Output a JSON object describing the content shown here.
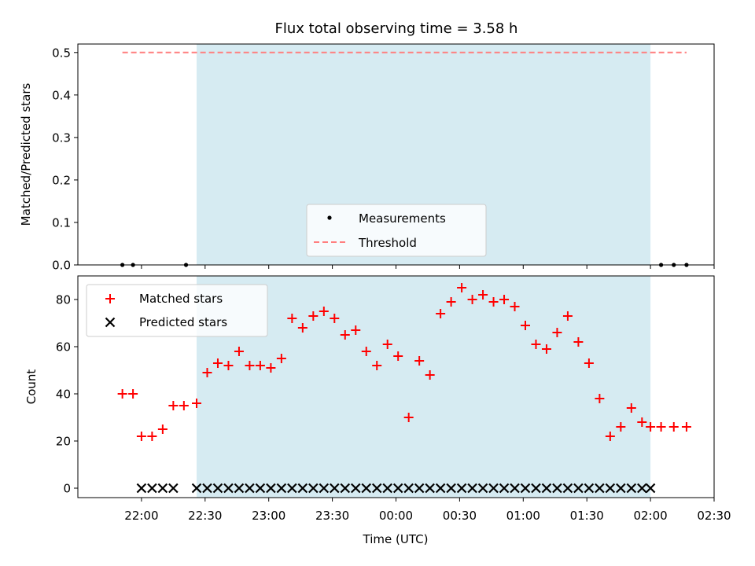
{
  "chart_data": [
    {
      "type": "scatter",
      "title": "Flux total observing time = 3.58 h",
      "xlabel": "",
      "ylabel": "Matched/Predicted stars",
      "xlim": [
        "21:30",
        "02:30"
      ],
      "ylim": [
        0.0,
        0.52
      ],
      "grid": false,
      "legend_placement": "lower center",
      "yticks": [
        "0.0",
        "0.1",
        "0.2",
        "0.3",
        "0.4",
        "0.5"
      ],
      "ytick_values": [
        0.0,
        0.1,
        0.2,
        0.3,
        0.4,
        0.5
      ],
      "shaded_interval": {
        "start": "22:26",
        "end": "02:00",
        "color": "#add8e6"
      },
      "series": [
        {
          "name": "Measurements",
          "marker": "dot",
          "color": "#000000",
          "points": [
            {
              "x": "21:51",
              "y": 0.0
            },
            {
              "x": "21:56",
              "y": 0.0
            },
            {
              "x": "22:21",
              "y": 0.0
            },
            {
              "x": "02:05",
              "y": 0.0
            },
            {
              "x": "02:11",
              "y": 0.0
            },
            {
              "x": "02:17",
              "y": 0.0
            }
          ]
        },
        {
          "name": "Threshold",
          "style": "dashed-line",
          "color": "#ff7f7f",
          "points": [
            {
              "x": "21:51",
              "y": 0.5
            },
            {
              "x": "02:17",
              "y": 0.5
            }
          ]
        }
      ]
    },
    {
      "type": "scatter",
      "title": "",
      "xlabel": "Time (UTC)",
      "ylabel": "Count",
      "xlim": [
        "21:30",
        "02:30"
      ],
      "ylim": [
        -4,
        90
      ],
      "grid": false,
      "legend_placement": "upper left",
      "xticks": [
        "22:00",
        "22:30",
        "23:00",
        "23:30",
        "00:00",
        "00:30",
        "01:00",
        "01:30",
        "02:00",
        "02:30"
      ],
      "yticks": [
        "0",
        "20",
        "40",
        "60",
        "80"
      ],
      "ytick_values": [
        0,
        20,
        40,
        60,
        80
      ],
      "shaded_interval": {
        "start": "22:26",
        "end": "02:00",
        "color": "#add8e6"
      },
      "series": [
        {
          "name": "Matched stars",
          "marker": "plus",
          "color": "#ff0000",
          "points": [
            {
              "x": "21:51",
              "y": 40
            },
            {
              "x": "21:56",
              "y": 40
            },
            {
              "x": "22:00",
              "y": 22
            },
            {
              "x": "22:05",
              "y": 22
            },
            {
              "x": "22:10",
              "y": 25
            },
            {
              "x": "22:15",
              "y": 35
            },
            {
              "x": "22:20",
              "y": 35
            },
            {
              "x": "22:26",
              "y": 36
            },
            {
              "x": "22:31",
              "y": 49
            },
            {
              "x": "22:36",
              "y": 53
            },
            {
              "x": "22:41",
              "y": 52
            },
            {
              "x": "22:46",
              "y": 58
            },
            {
              "x": "22:51",
              "y": 52
            },
            {
              "x": "22:56",
              "y": 52
            },
            {
              "x": "23:01",
              "y": 51
            },
            {
              "x": "23:06",
              "y": 55
            },
            {
              "x": "23:11",
              "y": 72
            },
            {
              "x": "23:16",
              "y": 68
            },
            {
              "x": "23:21",
              "y": 73
            },
            {
              "x": "23:26",
              "y": 75
            },
            {
              "x": "23:31",
              "y": 72
            },
            {
              "x": "23:36",
              "y": 65
            },
            {
              "x": "23:41",
              "y": 67
            },
            {
              "x": "23:46",
              "y": 58
            },
            {
              "x": "23:51",
              "y": 52
            },
            {
              "x": "23:56",
              "y": 61
            },
            {
              "x": "00:01",
              "y": 56
            },
            {
              "x": "00:06",
              "y": 30
            },
            {
              "x": "00:11",
              "y": 54
            },
            {
              "x": "00:16",
              "y": 48
            },
            {
              "x": "00:21",
              "y": 74
            },
            {
              "x": "00:26",
              "y": 79
            },
            {
              "x": "00:31",
              "y": 85
            },
            {
              "x": "00:36",
              "y": 80
            },
            {
              "x": "00:41",
              "y": 82
            },
            {
              "x": "00:46",
              "y": 79
            },
            {
              "x": "00:51",
              "y": 80
            },
            {
              "x": "00:56",
              "y": 77
            },
            {
              "x": "01:01",
              "y": 69
            },
            {
              "x": "01:06",
              "y": 61
            },
            {
              "x": "01:11",
              "y": 59
            },
            {
              "x": "01:16",
              "y": 66
            },
            {
              "x": "01:21",
              "y": 73
            },
            {
              "x": "01:26",
              "y": 62
            },
            {
              "x": "01:31",
              "y": 53
            },
            {
              "x": "01:36",
              "y": 38
            },
            {
              "x": "01:41",
              "y": 22
            },
            {
              "x": "01:46",
              "y": 26
            },
            {
              "x": "01:51",
              "y": 34
            },
            {
              "x": "01:56",
              "y": 28
            },
            {
              "x": "02:00",
              "y": 26
            },
            {
              "x": "02:05",
              "y": 26
            },
            {
              "x": "02:11",
              "y": 26
            },
            {
              "x": "02:17",
              "y": 26
            }
          ]
        },
        {
          "name": "Predicted stars",
          "marker": "x",
          "color": "#000000",
          "points": [
            {
              "x": "22:00",
              "y": 0
            },
            {
              "x": "22:05",
              "y": 0
            },
            {
              "x": "22:10",
              "y": 0
            },
            {
              "x": "22:15",
              "y": 0
            },
            {
              "x": "22:26",
              "y": 0
            },
            {
              "x": "22:31",
              "y": 0
            },
            {
              "x": "22:36",
              "y": 0
            },
            {
              "x": "22:41",
              "y": 0
            },
            {
              "x": "22:46",
              "y": 0
            },
            {
              "x": "22:51",
              "y": 0
            },
            {
              "x": "22:56",
              "y": 0
            },
            {
              "x": "23:01",
              "y": 0
            },
            {
              "x": "23:06",
              "y": 0
            },
            {
              "x": "23:11",
              "y": 0
            },
            {
              "x": "23:16",
              "y": 0
            },
            {
              "x": "23:21",
              "y": 0
            },
            {
              "x": "23:26",
              "y": 0
            },
            {
              "x": "23:31",
              "y": 0
            },
            {
              "x": "23:36",
              "y": 0
            },
            {
              "x": "23:41",
              "y": 0
            },
            {
              "x": "23:46",
              "y": 0
            },
            {
              "x": "23:51",
              "y": 0
            },
            {
              "x": "23:56",
              "y": 0
            },
            {
              "x": "00:01",
              "y": 0
            },
            {
              "x": "00:06",
              "y": 0
            },
            {
              "x": "00:11",
              "y": 0
            },
            {
              "x": "00:16",
              "y": 0
            },
            {
              "x": "00:21",
              "y": 0
            },
            {
              "x": "00:26",
              "y": 0
            },
            {
              "x": "00:31",
              "y": 0
            },
            {
              "x": "00:36",
              "y": 0
            },
            {
              "x": "00:41",
              "y": 0
            },
            {
              "x": "00:46",
              "y": 0
            },
            {
              "x": "00:51",
              "y": 0
            },
            {
              "x": "00:56",
              "y": 0
            },
            {
              "x": "01:01",
              "y": 0
            },
            {
              "x": "01:06",
              "y": 0
            },
            {
              "x": "01:11",
              "y": 0
            },
            {
              "x": "01:16",
              "y": 0
            },
            {
              "x": "01:21",
              "y": 0
            },
            {
              "x": "01:26",
              "y": 0
            },
            {
              "x": "01:31",
              "y": 0
            },
            {
              "x": "01:36",
              "y": 0
            },
            {
              "x": "01:41",
              "y": 0
            },
            {
              "x": "01:46",
              "y": 0
            },
            {
              "x": "01:51",
              "y": 0
            },
            {
              "x": "01:56",
              "y": 0
            },
            {
              "x": "02:00",
              "y": 0
            }
          ]
        }
      ]
    }
  ]
}
